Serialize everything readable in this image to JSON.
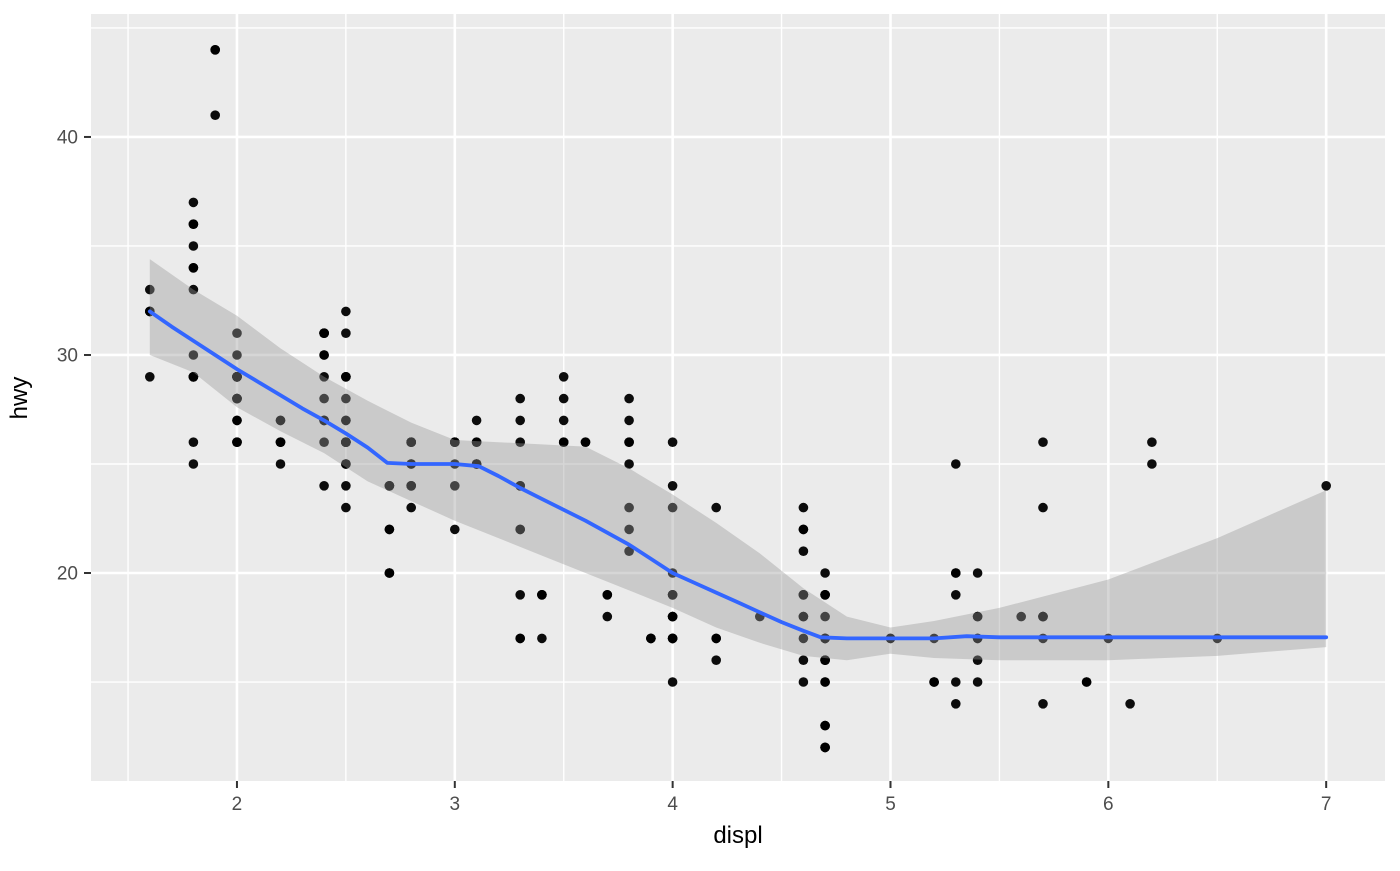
{
  "chart_data": {
    "type": "scatter",
    "title": "",
    "xlabel": "displ",
    "ylabel": "hwy",
    "legend": "none",
    "grid": "on",
    "x_major_ticks": [
      2,
      3,
      4,
      5,
      6,
      7
    ],
    "y_major_ticks": [
      20,
      30,
      40
    ],
    "x_minor_ticks": [
      1.5,
      2.5,
      3.5,
      4.5,
      5.5,
      6.5
    ],
    "y_minor_ticks": [
      15,
      25,
      35,
      45
    ],
    "xlim": [
      1.33,
      7.27
    ],
    "ylim": [
      10.46,
      45.64
    ],
    "colors": {
      "panel_bg": "#EBEBEB",
      "grid": "#FFFFFF",
      "point": "#000000",
      "smooth_line": "#3366FF",
      "ribbon_fill": "#999999",
      "ribbon_opacity": 0.4,
      "axis_text": "#4D4D4D",
      "axis_title": "#000000",
      "tick_mark": "#333333"
    },
    "points": [
      [
        1.8,
        29
      ],
      [
        1.8,
        29
      ],
      [
        2.0,
        31
      ],
      [
        2.0,
        30
      ],
      [
        2.8,
        26
      ],
      [
        2.8,
        26
      ],
      [
        3.1,
        27
      ],
      [
        1.8,
        26
      ],
      [
        1.8,
        25
      ],
      [
        2.0,
        28
      ],
      [
        2.0,
        27
      ],
      [
        2.8,
        25
      ],
      [
        2.8,
        25
      ],
      [
        3.1,
        25
      ],
      [
        3.1,
        25
      ],
      [
        2.8,
        24
      ],
      [
        3.1,
        25
      ],
      [
        4.2,
        23
      ],
      [
        5.3,
        20
      ],
      [
        5.3,
        15
      ],
      [
        5.3,
        20
      ],
      [
        5.7,
        17
      ],
      [
        6.0,
        17
      ],
      [
        5.7,
        26
      ],
      [
        5.7,
        23
      ],
      [
        6.2,
        26
      ],
      [
        6.2,
        25
      ],
      [
        7.0,
        24
      ],
      [
        5.3,
        14
      ],
      [
        5.3,
        19
      ],
      [
        5.7,
        14
      ],
      [
        6.5,
        17
      ],
      [
        2.4,
        27
      ],
      [
        2.4,
        30
      ],
      [
        3.1,
        26
      ],
      [
        3.5,
        29
      ],
      [
        3.6,
        26
      ],
      [
        2.4,
        24
      ],
      [
        3.0,
        24
      ],
      [
        3.3,
        22
      ],
      [
        3.3,
        22
      ],
      [
        3.3,
        24
      ],
      [
        3.3,
        24
      ],
      [
        3.3,
        17
      ],
      [
        3.8,
        22
      ],
      [
        3.8,
        21
      ],
      [
        3.8,
        23
      ],
      [
        4.0,
        23
      ],
      [
        3.7,
        19
      ],
      [
        3.7,
        18
      ],
      [
        3.9,
        17
      ],
      [
        3.9,
        17
      ],
      [
        4.7,
        19
      ],
      [
        4.7,
        19
      ],
      [
        4.7,
        12
      ],
      [
        5.2,
        17
      ],
      [
        5.2,
        15
      ],
      [
        3.9,
        17
      ],
      [
        4.7,
        17
      ],
      [
        4.7,
        12
      ],
      [
        4.7,
        16
      ],
      [
        4.7,
        18
      ],
      [
        5.2,
        15
      ],
      [
        5.9,
        15
      ],
      [
        4.7,
        17
      ],
      [
        4.7,
        15
      ],
      [
        4.7,
        13
      ],
      [
        4.7,
        13
      ],
      [
        4.7,
        16
      ],
      [
        4.7,
        17
      ],
      [
        4.7,
        16
      ],
      [
        5.2,
        15
      ],
      [
        5.7,
        18
      ],
      [
        5.9,
        15
      ],
      [
        4.6,
        17
      ],
      [
        5.4,
        17
      ],
      [
        5.4,
        18
      ],
      [
        4.0,
        17
      ],
      [
        4.0,
        19
      ],
      [
        4.0,
        17
      ],
      [
        4.0,
        19
      ],
      [
        4.6,
        19
      ],
      [
        5.0,
        17
      ],
      [
        4.2,
        17
      ],
      [
        4.2,
        16
      ],
      [
        4.6,
        18
      ],
      [
        4.6,
        18
      ],
      [
        4.6,
        15
      ],
      [
        4.6,
        19
      ],
      [
        5.4,
        17
      ],
      [
        3.8,
        26
      ],
      [
        3.8,
        25
      ],
      [
        4.0,
        26
      ],
      [
        4.0,
        24
      ],
      [
        4.6,
        21
      ],
      [
        4.6,
        22
      ],
      [
        4.6,
        23
      ],
      [
        4.6,
        22
      ],
      [
        5.4,
        20
      ],
      [
        1.6,
        33
      ],
      [
        1.6,
        32
      ],
      [
        1.6,
        32
      ],
      [
        1.6,
        29
      ],
      [
        1.6,
        32
      ],
      [
        1.8,
        34
      ],
      [
        1.8,
        36
      ],
      [
        1.8,
        36
      ],
      [
        2.0,
        29
      ],
      [
        2.4,
        26
      ],
      [
        2.4,
        27
      ],
      [
        2.4,
        30
      ],
      [
        2.4,
        31
      ],
      [
        2.5,
        26
      ],
      [
        2.5,
        26
      ],
      [
        3.3,
        28
      ],
      [
        2.0,
        26
      ],
      [
        2.0,
        29
      ],
      [
        2.0,
        28
      ],
      [
        2.0,
        27
      ],
      [
        2.7,
        24
      ],
      [
        2.7,
        24
      ],
      [
        2.7,
        24
      ],
      [
        3.0,
        22
      ],
      [
        3.7,
        19
      ],
      [
        4.0,
        18
      ],
      [
        4.7,
        19
      ],
      [
        4.7,
        17
      ],
      [
        4.7,
        12
      ],
      [
        5.7,
        18
      ],
      [
        6.1,
        14
      ],
      [
        4.0,
        15
      ],
      [
        4.2,
        17
      ],
      [
        4.4,
        18
      ],
      [
        4.6,
        16
      ],
      [
        5.4,
        18
      ],
      [
        5.4,
        16
      ],
      [
        5.4,
        15
      ],
      [
        4.0,
        17
      ],
      [
        4.0,
        19
      ],
      [
        4.6,
        19
      ],
      [
        5.0,
        17
      ],
      [
        2.4,
        29
      ],
      [
        2.4,
        27
      ],
      [
        2.5,
        31
      ],
      [
        2.5,
        32
      ],
      [
        3.5,
        27
      ],
      [
        3.5,
        26
      ],
      [
        3.0,
        26
      ],
      [
        3.0,
        25
      ],
      [
        3.5,
        26
      ],
      [
        3.3,
        19
      ],
      [
        3.3,
        17
      ],
      [
        4.0,
        20
      ],
      [
        5.6,
        18
      ],
      [
        3.1,
        26
      ],
      [
        3.8,
        26
      ],
      [
        3.8,
        27
      ],
      [
        3.8,
        28
      ],
      [
        5.3,
        25
      ],
      [
        2.5,
        26
      ],
      [
        2.5,
        27
      ],
      [
        2.5,
        25
      ],
      [
        2.5,
        26
      ],
      [
        2.5,
        25
      ],
      [
        2.5,
        26
      ],
      [
        2.2,
        26
      ],
      [
        2.2,
        25
      ],
      [
        2.5,
        26
      ],
      [
        2.5,
        25
      ],
      [
        2.5,
        27
      ],
      [
        2.5,
        24
      ],
      [
        2.5,
        26
      ],
      [
        2.5,
        23
      ],
      [
        2.7,
        20
      ],
      [
        2.7,
        20
      ],
      [
        3.4,
        17
      ],
      [
        3.4,
        19
      ],
      [
        4.0,
        18
      ],
      [
        4.7,
        20
      ],
      [
        2.2,
        26
      ],
      [
        2.2,
        27
      ],
      [
        2.4,
        28
      ],
      [
        2.4,
        31
      ],
      [
        3.0,
        26
      ],
      [
        3.0,
        26
      ],
      [
        3.5,
        28
      ],
      [
        2.2,
        26
      ],
      [
        2.2,
        27
      ],
      [
        2.4,
        31
      ],
      [
        2.4,
        31
      ],
      [
        3.0,
        26
      ],
      [
        3.3,
        27
      ],
      [
        3.3,
        26
      ],
      [
        1.8,
        30
      ],
      [
        1.8,
        33
      ],
      [
        1.8,
        34
      ],
      [
        1.8,
        35
      ],
      [
        1.8,
        37
      ],
      [
        4.7,
        15
      ],
      [
        5.7,
        18
      ],
      [
        2.7,
        20
      ],
      [
        2.7,
        22
      ],
      [
        2.7,
        22
      ],
      [
        3.4,
        19
      ],
      [
        3.4,
        19
      ],
      [
        4.0,
        17
      ],
      [
        4.0,
        18
      ],
      [
        2.0,
        29
      ],
      [
        2.0,
        29
      ],
      [
        2.0,
        28
      ],
      [
        2.0,
        29
      ],
      [
        2.8,
        24
      ],
      [
        1.9,
        44
      ],
      [
        2.0,
        29
      ],
      [
        2.0,
        26
      ],
      [
        2.0,
        29
      ],
      [
        2.0,
        29
      ],
      [
        2.5,
        29
      ],
      [
        2.5,
        29
      ],
      [
        2.8,
        24
      ],
      [
        2.8,
        23
      ],
      [
        1.9,
        44
      ],
      [
        1.9,
        41
      ],
      [
        2.0,
        29
      ],
      [
        2.0,
        26
      ],
      [
        2.5,
        28
      ],
      [
        2.5,
        29
      ],
      [
        1.8,
        29
      ],
      [
        1.8,
        29
      ],
      [
        2.0,
        28
      ],
      [
        2.0,
        29
      ],
      [
        2.8,
        26
      ],
      [
        2.8,
        26
      ],
      [
        3.6,
        26
      ]
    ],
    "smooth_line": [
      [
        1.6,
        32.0
      ],
      [
        1.7,
        31.3
      ],
      [
        1.8,
        30.65
      ],
      [
        1.9,
        30.0
      ],
      [
        2.0,
        29.35
      ],
      [
        2.1,
        28.75
      ],
      [
        2.2,
        28.15
      ],
      [
        2.3,
        27.55
      ],
      [
        2.4,
        27.0
      ],
      [
        2.5,
        26.4
      ],
      [
        2.6,
        25.75
      ],
      [
        2.69,
        25.05
      ],
      [
        2.8,
        25.0
      ],
      [
        2.9,
        25.0
      ],
      [
        3.0,
        25.0
      ],
      [
        3.11,
        24.9
      ],
      [
        3.2,
        24.45
      ],
      [
        3.3,
        23.9
      ],
      [
        3.4,
        23.4
      ],
      [
        3.5,
        22.9
      ],
      [
        3.6,
        22.4
      ],
      [
        3.7,
        21.85
      ],
      [
        3.8,
        21.3
      ],
      [
        3.9,
        20.65
      ],
      [
        4.0,
        20.0
      ],
      [
        4.1,
        19.55
      ],
      [
        4.2,
        19.1
      ],
      [
        4.3,
        18.65
      ],
      [
        4.4,
        18.2
      ],
      [
        4.5,
        17.75
      ],
      [
        4.6,
        17.35
      ],
      [
        4.68,
        17.05
      ],
      [
        4.8,
        17.0
      ],
      [
        5.0,
        17.0
      ],
      [
        5.2,
        17.0
      ],
      [
        5.35,
        17.1
      ],
      [
        5.5,
        17.05
      ],
      [
        6.0,
        17.05
      ],
      [
        6.5,
        17.05
      ],
      [
        7.0,
        17.05
      ]
    ],
    "ribbon_upper": [
      [
        1.6,
        34.4
      ],
      [
        1.8,
        33.0
      ],
      [
        2.0,
        31.8
      ],
      [
        2.2,
        30.3
      ],
      [
        2.4,
        29.0
      ],
      [
        2.6,
        27.9
      ],
      [
        2.8,
        26.9
      ],
      [
        3.0,
        26.1
      ],
      [
        3.2,
        26.0
      ],
      [
        3.4,
        25.9
      ],
      [
        3.6,
        25.8
      ],
      [
        3.8,
        24.8
      ],
      [
        4.0,
        23.6
      ],
      [
        4.2,
        22.3
      ],
      [
        4.4,
        20.9
      ],
      [
        4.6,
        19.3
      ],
      [
        4.8,
        18.0
      ],
      [
        5.0,
        17.5
      ],
      [
        5.2,
        17.8
      ],
      [
        5.5,
        18.4
      ],
      [
        6.0,
        19.7
      ],
      [
        6.5,
        21.6
      ],
      [
        7.0,
        23.8
      ]
    ],
    "ribbon_lower": [
      [
        1.6,
        30.0
      ],
      [
        1.8,
        29.2
      ],
      [
        2.0,
        27.6
      ],
      [
        2.2,
        26.5
      ],
      [
        2.4,
        25.5
      ],
      [
        2.6,
        24.2
      ],
      [
        2.8,
        23.3
      ],
      [
        3.0,
        22.4
      ],
      [
        3.2,
        21.6
      ],
      [
        3.4,
        20.8
      ],
      [
        3.6,
        20.0
      ],
      [
        3.8,
        19.2
      ],
      [
        4.0,
        18.4
      ],
      [
        4.2,
        17.5
      ],
      [
        4.4,
        16.8
      ],
      [
        4.6,
        16.2
      ],
      [
        4.8,
        16.0
      ],
      [
        5.0,
        16.3
      ],
      [
        5.2,
        16.1
      ],
      [
        5.5,
        16.0
      ],
      [
        6.0,
        16.0
      ],
      [
        6.5,
        16.2
      ],
      [
        7.0,
        16.6
      ]
    ]
  }
}
